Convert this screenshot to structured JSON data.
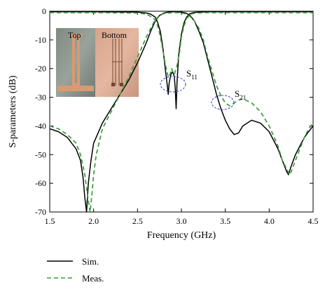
{
  "chart_data": {
    "type": "line",
    "xlabel": "Frequency (GHz)",
    "ylabel": "S-parameters (dB)",
    "xlim": [
      1.5,
      4.5
    ],
    "ylim": [
      -70,
      0
    ],
    "xticks": [
      "1.5",
      "2.0",
      "2.5",
      "3.0",
      "3.5",
      "4.0",
      "4.5"
    ],
    "yticks": [
      "0",
      "-10",
      "-20",
      "-30",
      "-40",
      "-50",
      "-60",
      "-70"
    ],
    "grid": false,
    "legend": "bottom-left",
    "annotations": [
      {
        "main": "S",
        "sub": "11"
      },
      {
        "main": "S",
        "sub": "21"
      }
    ],
    "inset_labels": [
      "Top",
      "Bottom"
    ],
    "series": [
      {
        "name": "Sim.",
        "color": "#000000",
        "style": "solid",
        "curves": [
          {
            "trace": "S21",
            "x": [
              1.5,
              1.6,
              1.7,
              1.8,
              1.85,
              1.88,
              1.9,
              1.92,
              1.94,
              1.97,
              2.0,
              2.1,
              2.2,
              2.3,
              2.4,
              2.5,
              2.6,
              2.65,
              2.7,
              2.75,
              2.8,
              2.85,
              2.9,
              2.95,
              3.0,
              3.05,
              3.1,
              3.15,
              3.2,
              3.25,
              3.3,
              3.35,
              3.4,
              3.45,
              3.5,
              3.55,
              3.6,
              3.65,
              3.7,
              3.8,
              3.9,
              4.0,
              4.1,
              4.15,
              4.2,
              4.22,
              4.25,
              4.3,
              4.35,
              4.4,
              4.45,
              4.5
            ],
            "y": [
              -41,
              -42,
              -44,
              -48,
              -52,
              -58,
              -65,
              -70,
              -60,
              -52,
              -46,
              -39,
              -34,
              -29,
              -24,
              -18,
              -11,
              -7,
              -3.5,
              -1.5,
              -0.6,
              -0.3,
              -0.2,
              -0.2,
              -0.3,
              -0.6,
              -1.5,
              -3.5,
              -7,
              -11,
              -17,
              -23,
              -29,
              -34,
              -38,
              -41,
              -43,
              -42.5,
              -40,
              -38,
              -39,
              -42,
              -48,
              -52,
              -56,
              -57,
              -54,
              -50,
              -47,
              -44,
              -42,
              -40
            ]
          },
          {
            "trace": "S11",
            "x": [
              1.5,
              2.0,
              2.5,
              2.6,
              2.65,
              2.7,
              2.73,
              2.76,
              2.79,
              2.82,
              2.84,
              2.85,
              2.86,
              2.88,
              2.9,
              2.92,
              2.93,
              2.94,
              2.95,
              2.97,
              3.0,
              3.03,
              3.06,
              3.09,
              3.12,
              3.15,
              3.2,
              3.3,
              3.5,
              4.0,
              4.5
            ],
            "y": [
              -0.2,
              -0.2,
              -0.3,
              -0.6,
              -1,
              -2,
              -4,
              -7,
              -13,
              -21,
              -26,
              -29,
              -25,
              -22,
              -21,
              -23,
              -27,
              -34,
              -25,
              -15,
              -8,
              -4,
              -2,
              -1,
              -0.6,
              -0.4,
              -0.3,
              -0.2,
              -0.2,
              -0.2,
              -0.2
            ]
          }
        ]
      },
      {
        "name": "Meas.",
        "color": "#3a9a3a",
        "style": "dashed",
        "curves": [
          {
            "trace": "S21",
            "x": [
              1.5,
              1.6,
              1.7,
              1.8,
              1.85,
              1.9,
              1.93,
              1.96,
              1.98,
              2.0,
              2.03,
              2.1,
              2.2,
              2.3,
              2.4,
              2.5,
              2.6,
              2.65,
              2.7,
              2.75,
              2.8,
              2.85,
              2.9,
              2.95,
              3.0,
              3.05,
              3.1,
              3.15,
              3.2,
              3.25,
              3.3,
              3.35,
              3.4,
              3.45,
              3.5,
              3.55,
              3.6,
              3.65,
              3.7,
              3.8,
              3.9,
              4.0,
              4.1,
              4.15,
              4.2,
              4.23,
              4.25,
              4.3,
              4.35,
              4.4,
              4.45,
              4.5
            ],
            "y": [
              -40,
              -41,
              -43,
              -46,
              -50,
              -57,
              -64,
              -70,
              -64,
              -57,
              -50,
              -41,
              -35,
              -29,
              -23,
              -16,
              -9,
              -6,
              -3,
              -1.5,
              -0.8,
              -0.6,
              -0.5,
              -0.5,
              -0.6,
              -0.9,
              -1.8,
              -3.5,
              -6,
              -10,
              -16,
              -21,
              -26,
              -29.5,
              -32,
              -33,
              -32,
              -31,
              -30.5,
              -32,
              -35,
              -40,
              -47,
              -52,
              -55,
              -57,
              -56,
              -52,
              -48,
              -44,
              -41,
              -39
            ]
          },
          {
            "trace": "S11",
            "x": [
              1.5,
              2.0,
              2.5,
              2.6,
              2.65,
              2.7,
              2.74,
              2.78,
              2.82,
              2.85,
              2.87,
              2.89,
              2.9,
              2.92,
              2.95,
              2.98,
              3.0,
              3.03,
              3.06,
              3.09,
              3.12,
              3.15,
              3.2,
              3.3,
              3.5,
              4.0,
              4.5
            ],
            "y": [
              -0.5,
              -0.5,
              -0.6,
              -1,
              -1.8,
              -3,
              -6,
              -12,
              -19,
              -23,
              -22,
              -20,
              -21,
              -22,
              -19,
              -14,
              -9,
              -5,
              -2.5,
              -1.5,
              -0.9,
              -0.7,
              -0.6,
              -0.5,
              -0.5,
              -0.5,
              -0.5
            ]
          }
        ]
      }
    ]
  }
}
